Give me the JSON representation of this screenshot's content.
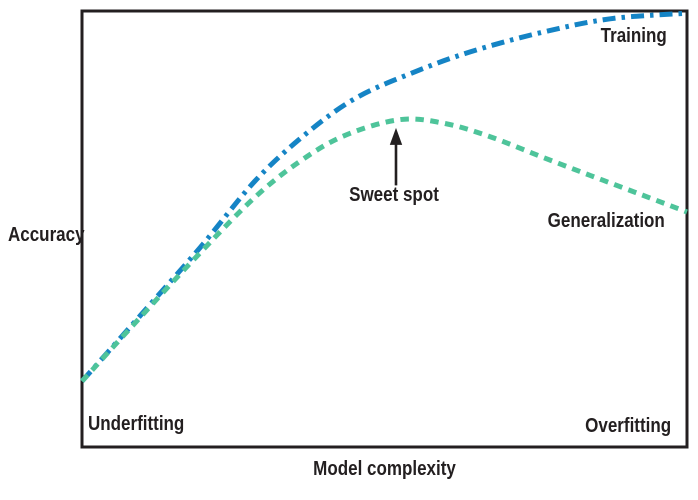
{
  "figure": {
    "background": "#ffffff",
    "axis_color": "#231f20",
    "text_color": "#231f20"
  },
  "chart_data": {
    "type": "line",
    "title": "",
    "xlabel": "Model complexity",
    "ylabel": "Accuracy",
    "xlim": [
      0,
      1
    ],
    "ylim": [
      0,
      1
    ],
    "grid": false,
    "tick_labels": "none (qualitative axes)",
    "legend_position": "inline labels near curves",
    "series": [
      {
        "name": "Training",
        "color": "#1584c5",
        "line_style": "dash-dot",
        "line_width": 5,
        "points": [
          [
            0.0,
            0.151
          ],
          [
            0.096,
            0.301
          ],
          [
            0.195,
            0.457
          ],
          [
            0.286,
            0.61
          ],
          [
            0.369,
            0.717
          ],
          [
            0.451,
            0.799
          ],
          [
            0.542,
            0.856
          ],
          [
            0.641,
            0.906
          ],
          [
            0.757,
            0.95
          ],
          [
            0.873,
            0.982
          ],
          [
            1.0,
            0.995
          ]
        ]
      },
      {
        "name": "Generalization",
        "color": "#4ec49a",
        "line_style": "dashed",
        "line_width": 5,
        "points": [
          [
            0.0,
            0.151
          ],
          [
            0.096,
            0.297
          ],
          [
            0.195,
            0.445
          ],
          [
            0.286,
            0.573
          ],
          [
            0.36,
            0.655
          ],
          [
            0.435,
            0.715
          ],
          [
            0.526,
            0.751
          ],
          [
            0.6,
            0.742
          ],
          [
            0.674,
            0.712
          ],
          [
            0.757,
            0.667
          ],
          [
            0.84,
            0.623
          ],
          [
            0.922,
            0.58
          ],
          [
            1.0,
            0.539
          ]
        ]
      }
    ],
    "annotations": [
      {
        "type": "arrow",
        "label": "Sweet spot",
        "x": 0.519,
        "y_tip": 0.732,
        "y_tail": 0.6,
        "color": "#231f20"
      },
      {
        "type": "text",
        "label": "Underfitting",
        "position": "bottom-left inside plot"
      },
      {
        "type": "text",
        "label": "Overfitting",
        "position": "bottom-right inside plot"
      }
    ]
  }
}
